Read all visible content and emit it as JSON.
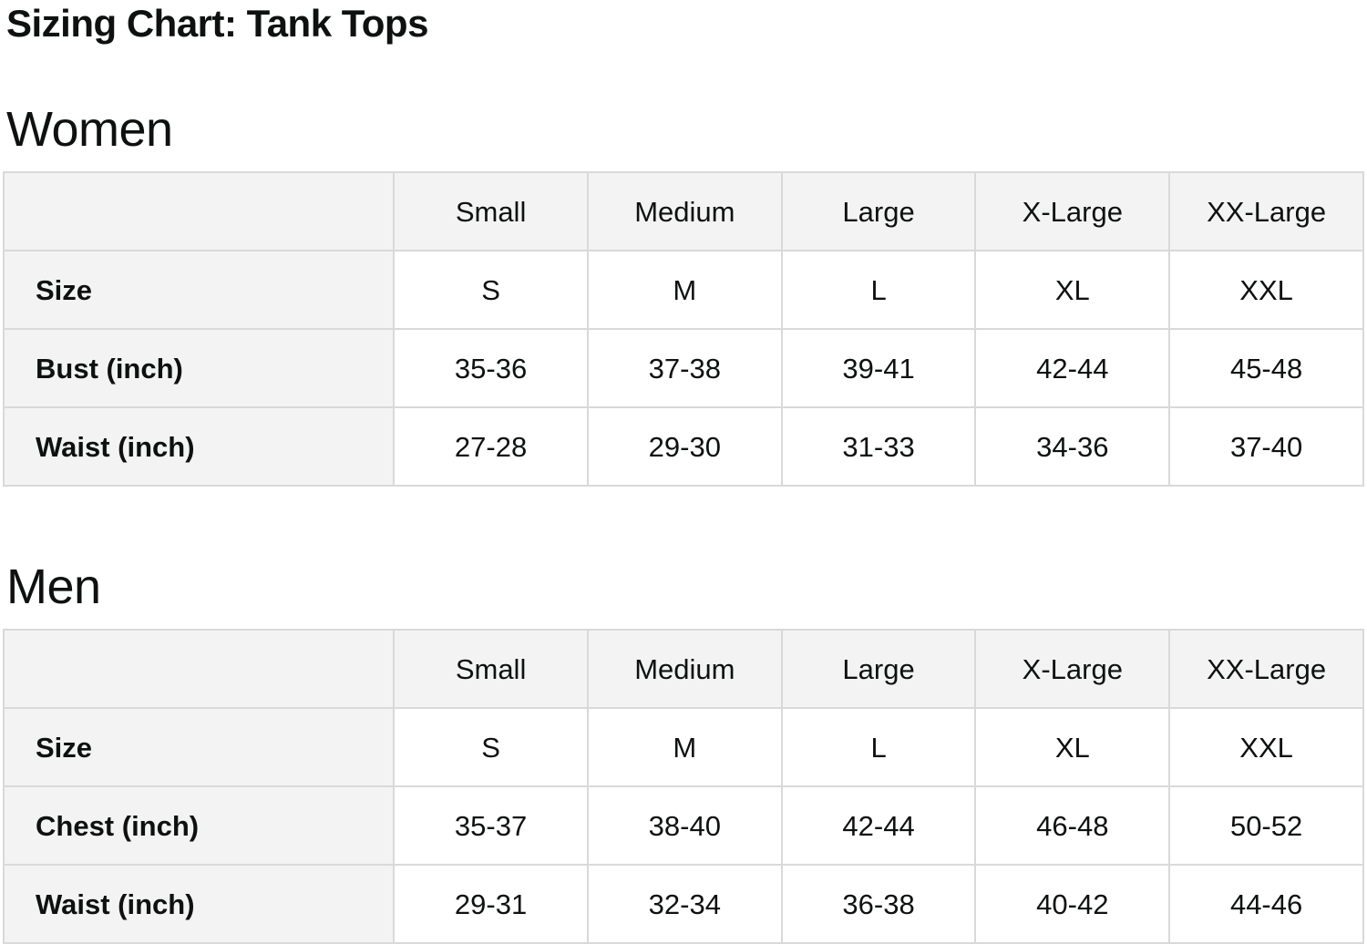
{
  "page": {
    "title": "Sizing Chart: Tank Tops"
  },
  "colors": {
    "header_cell_bg": "#f3f3f3",
    "table_border": "#d9d9d9",
    "text": "#0f1111",
    "page_bg": "#ffffff"
  },
  "sections": [
    {
      "heading": "Women",
      "table": {
        "column_headers": [
          "",
          "Small",
          "Medium",
          "Large",
          "X-Large",
          "XX-Large"
        ],
        "rows": [
          {
            "label": "Size",
            "values": [
              "S",
              "M",
              "L",
              "XL",
              "XXL"
            ]
          },
          {
            "label": "Bust (inch)",
            "values": [
              "35-36",
              "37-38",
              "39-41",
              "42-44",
              "45-48"
            ]
          },
          {
            "label": "Waist (inch)",
            "values": [
              "27-28",
              "29-30",
              "31-33",
              "34-36",
              "37-40"
            ]
          }
        ]
      }
    },
    {
      "heading": "Men",
      "table": {
        "column_headers": [
          "",
          "Small",
          "Medium",
          "Large",
          "X-Large",
          "XX-Large"
        ],
        "rows": [
          {
            "label": "Size",
            "values": [
              "S",
              "M",
              "L",
              "XL",
              "XXL"
            ]
          },
          {
            "label": "Chest (inch)",
            "values": [
              "35-37",
              "38-40",
              "42-44",
              "46-48",
              "50-52"
            ]
          },
          {
            "label": "Waist (inch)",
            "values": [
              "29-31",
              "32-34",
              "36-38",
              "40-42",
              "44-46"
            ]
          }
        ]
      }
    }
  ]
}
